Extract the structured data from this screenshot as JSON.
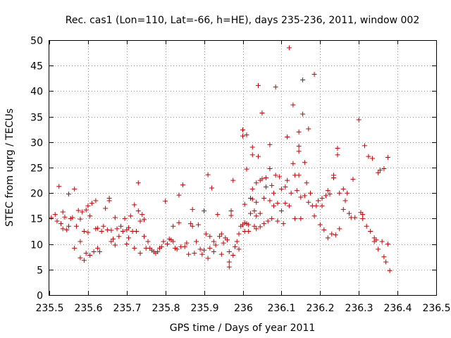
{
  "chart_data": {
    "type": "scatter",
    "title": "Rec. cas1 (Lon=110, Lat=-66, h=HE), days 235-236, 2011, window 002",
    "xlabel": "GPS time / Days of year 2011",
    "ylabel": "STEC from uqrg / TECUs",
    "xlim": [
      235.5,
      236.5
    ],
    "ylim": [
      0,
      50
    ],
    "xticks": [
      "235.5",
      "235.6",
      "235.7",
      "235.8",
      "235.9",
      "236",
      "236.1",
      "236.2",
      "236.3",
      "236.4",
      "236.5"
    ],
    "yticks": [
      "0",
      "5",
      "10",
      "15",
      "20",
      "25",
      "30",
      "35",
      "40",
      "45",
      "50"
    ],
    "grid": true,
    "marker": "plus",
    "color": "#cc0000",
    "points": [
      [
        235.505,
        15.2
      ],
      [
        235.515,
        15.8
      ],
      [
        235.52,
        14.5
      ],
      [
        235.525,
        21.3
      ],
      [
        235.53,
        14.0
      ],
      [
        235.535,
        16.3
      ],
      [
        235.535,
        13.0
      ],
      [
        235.54,
        15.3
      ],
      [
        235.545,
        12.8
      ],
      [
        235.55,
        19.8
      ],
      [
        235.55,
        13.5
      ],
      [
        235.555,
        15.0
      ],
      [
        235.56,
        15.2
      ],
      [
        235.565,
        20.8
      ],
      [
        235.565,
        9.2
      ],
      [
        235.57,
        13.5
      ],
      [
        235.575,
        16.6
      ],
      [
        235.58,
        14.9
      ],
      [
        235.58,
        10.5
      ],
      [
        235.58,
        7.3
      ],
      [
        235.585,
        16.3
      ],
      [
        235.59,
        12.5
      ],
      [
        235.59,
        6.8
      ],
      [
        235.595,
        16.7
      ],
      [
        235.595,
        8.2
      ],
      [
        235.6,
        17.5
      ],
      [
        235.6,
        12.3
      ],
      [
        235.605,
        15.5
      ],
      [
        235.605,
        7.8
      ],
      [
        235.61,
        18.0
      ],
      [
        235.615,
        8.5
      ],
      [
        235.62,
        18.5
      ],
      [
        235.62,
        13.0
      ],
      [
        235.625,
        13.1
      ],
      [
        235.625,
        9.2
      ],
      [
        235.63,
        8.5
      ],
      [
        235.635,
        12.5
      ],
      [
        235.64,
        13.5
      ],
      [
        235.645,
        17.0
      ],
      [
        235.65,
        12.8
      ],
      [
        235.655,
        18.5
      ],
      [
        235.655,
        19.0
      ],
      [
        235.66,
        12.7
      ],
      [
        235.66,
        10.5
      ],
      [
        235.665,
        11.0
      ],
      [
        235.67,
        15.2
      ],
      [
        235.67,
        9.8
      ],
      [
        235.675,
        13.0
      ],
      [
        235.68,
        11.5
      ],
      [
        235.685,
        13.5
      ],
      [
        235.69,
        12.5
      ],
      [
        235.695,
        15.0
      ],
      [
        235.7,
        12.8
      ],
      [
        235.7,
        10.0
      ],
      [
        235.705,
        13.2
      ],
      [
        235.705,
        11.2
      ],
      [
        235.71,
        15.5
      ],
      [
        235.715,
        12.5
      ],
      [
        235.72,
        17.7
      ],
      [
        235.72,
        9.2
      ],
      [
        235.725,
        12.5
      ],
      [
        235.73,
        16.5
      ],
      [
        235.73,
        22.0
      ],
      [
        235.735,
        14.5
      ],
      [
        235.735,
        8.2
      ],
      [
        235.74,
        15.8
      ],
      [
        235.745,
        14.8
      ],
      [
        235.745,
        11.5
      ],
      [
        235.75,
        9.2
      ],
      [
        235.755,
        10.5
      ],
      [
        235.76,
        9.2
      ],
      [
        235.765,
        8.8
      ],
      [
        235.77,
        8.5
      ],
      [
        235.775,
        8.2
      ],
      [
        235.78,
        8.5
      ],
      [
        235.785,
        9.2
      ],
      [
        235.79,
        9.5
      ],
      [
        235.795,
        10.5
      ],
      [
        235.8,
        18.4
      ],
      [
        235.805,
        10.0
      ],
      [
        235.81,
        11.0
      ],
      [
        235.815,
        10.8
      ],
      [
        235.82,
        10.5
      ],
      [
        235.82,
        13.5
      ],
      [
        235.825,
        9.2
      ],
      [
        235.83,
        9.0
      ],
      [
        235.835,
        14.2
      ],
      [
        235.835,
        19.6
      ],
      [
        235.84,
        9.5
      ],
      [
        235.845,
        21.6
      ],
      [
        235.85,
        9.5
      ],
      [
        235.855,
        10.2
      ],
      [
        235.86,
        8.0
      ],
      [
        235.865,
        14.0
      ],
      [
        235.87,
        13.5
      ],
      [
        235.87,
        16.8
      ],
      [
        235.875,
        8.2
      ],
      [
        235.88,
        10.5
      ],
      [
        235.885,
        13.8
      ],
      [
        235.89,
        9.0
      ],
      [
        235.895,
        8.0
      ],
      [
        235.9,
        8.8
      ],
      [
        235.9,
        16.5
      ],
      [
        235.905,
        12.0
      ],
      [
        235.91,
        23.6
      ],
      [
        235.91,
        7.2
      ],
      [
        235.915,
        11.5
      ],
      [
        235.915,
        9.2
      ],
      [
        235.92,
        21.0
      ],
      [
        235.925,
        10.5
      ],
      [
        235.925,
        8.5
      ],
      [
        235.93,
        9.8
      ],
      [
        235.935,
        15.8
      ],
      [
        235.94,
        11.5
      ],
      [
        235.945,
        12.0
      ],
      [
        235.945,
        8.0
      ],
      [
        235.95,
        10.2
      ],
      [
        235.955,
        11.2
      ],
      [
        235.96,
        10.8
      ],
      [
        235.965,
        5.5
      ],
      [
        235.965,
        6.5
      ],
      [
        235.965,
        8.5
      ],
      [
        235.97,
        16.5
      ],
      [
        235.97,
        15.6
      ],
      [
        235.975,
        22.5
      ],
      [
        235.975,
        7.8
      ],
      [
        235.98,
        9.5
      ],
      [
        235.985,
        10.5
      ],
      [
        235.99,
        12.0
      ],
      [
        235.99,
        9.0
      ],
      [
        235.995,
        13.5
      ],
      [
        236.0,
        13.8
      ],
      [
        236.0,
        32.4
      ],
      [
        236.0,
        31.2
      ],
      [
        236.005,
        17.8
      ],
      [
        236.005,
        14.2
      ],
      [
        236.005,
        12.5
      ],
      [
        236.01,
        31.4
      ],
      [
        236.01,
        24.7
      ],
      [
        236.01,
        14.0
      ],
      [
        236.015,
        13.8
      ],
      [
        236.015,
        12.5
      ],
      [
        236.02,
        19.0
      ],
      [
        236.02,
        16.0
      ],
      [
        236.025,
        29.0
      ],
      [
        236.025,
        27.5
      ],
      [
        236.025,
        20.8
      ],
      [
        236.025,
        18.8
      ],
      [
        236.03,
        16.5
      ],
      [
        236.03,
        13.5
      ],
      [
        236.035,
        22.0
      ],
      [
        236.035,
        18.2
      ],
      [
        236.035,
        15.5
      ],
      [
        236.035,
        13.0
      ],
      [
        236.04,
        27.2
      ],
      [
        236.04,
        41.1
      ],
      [
        236.045,
        22.5
      ],
      [
        236.045,
        16.0
      ],
      [
        236.045,
        13.4
      ],
      [
        236.05,
        35.7
      ],
      [
        236.05,
        22.8
      ],
      [
        236.055,
        19.0
      ],
      [
        236.055,
        14.0
      ],
      [
        236.06,
        23.0
      ],
      [
        236.06,
        21.2
      ],
      [
        236.065,
        14.5
      ],
      [
        236.07,
        29.5
      ],
      [
        236.07,
        24.8
      ],
      [
        236.07,
        18.5
      ],
      [
        236.075,
        21.5
      ],
      [
        236.075,
        15.0
      ],
      [
        236.08,
        20.0
      ],
      [
        236.08,
        17.5
      ],
      [
        236.085,
        23.5
      ],
      [
        236.085,
        40.8
      ],
      [
        236.09,
        18.0
      ],
      [
        236.09,
        14.5
      ],
      [
        236.095,
        23.2
      ],
      [
        236.1,
        20.8
      ],
      [
        236.1,
        16.5
      ],
      [
        236.105,
        14.0
      ],
      [
        236.11,
        21.2
      ],
      [
        236.11,
        18.0
      ],
      [
        236.115,
        22.5
      ],
      [
        236.115,
        31.0
      ],
      [
        236.12,
        48.5
      ],
      [
        236.12,
        17.5
      ],
      [
        236.125,
        20.0
      ],
      [
        236.13,
        37.3
      ],
      [
        236.13,
        25.8
      ],
      [
        236.135,
        23.5
      ],
      [
        236.135,
        15.0
      ],
      [
        236.14,
        20.5
      ],
      [
        236.145,
        32.0
      ],
      [
        236.145,
        29.2
      ],
      [
        236.145,
        28.2
      ],
      [
        236.145,
        23.5
      ],
      [
        236.15,
        19.2
      ],
      [
        236.15,
        15.0
      ],
      [
        236.155,
        42.2
      ],
      [
        236.155,
        35.5
      ],
      [
        236.16,
        26.0
      ],
      [
        236.16,
        19.5
      ],
      [
        236.165,
        22.0
      ],
      [
        236.17,
        32.6
      ],
      [
        236.17,
        18.2
      ],
      [
        236.175,
        20.0
      ],
      [
        236.18,
        17.5
      ],
      [
        236.185,
        43.3
      ],
      [
        236.185,
        15.5
      ],
      [
        236.19,
        17.5
      ],
      [
        236.195,
        18.5
      ],
      [
        236.2,
        13.8
      ],
      [
        236.205,
        19.0
      ],
      [
        236.205,
        17.5
      ],
      [
        236.21,
        12.8
      ],
      [
        236.215,
        19.5
      ],
      [
        236.22,
        20.5
      ],
      [
        236.22,
        11.2
      ],
      [
        236.225,
        19.8
      ],
      [
        236.23,
        12.0
      ],
      [
        236.235,
        23.5
      ],
      [
        236.235,
        23.0
      ],
      [
        236.24,
        11.8
      ],
      [
        236.245,
        28.8
      ],
      [
        236.245,
        27.5
      ],
      [
        236.25,
        20.0
      ],
      [
        236.25,
        13.0
      ],
      [
        236.26,
        16.8
      ],
      [
        236.26,
        20.8
      ],
      [
        236.265,
        18.5
      ],
      [
        236.27,
        20.0
      ],
      [
        236.275,
        16.0
      ],
      [
        236.28,
        15.2
      ],
      [
        236.285,
        22.7
      ],
      [
        236.29,
        15.2
      ],
      [
        236.3,
        34.4
      ],
      [
        236.305,
        16.2
      ],
      [
        236.31,
        15.0
      ],
      [
        236.31,
        15.8
      ],
      [
        236.315,
        29.3
      ],
      [
        236.32,
        13.5
      ],
      [
        236.325,
        27.2
      ],
      [
        236.33,
        12.5
      ],
      [
        236.335,
        26.8
      ],
      [
        236.34,
        11.2
      ],
      [
        236.34,
        10.5
      ],
      [
        236.345,
        10.8
      ],
      [
        236.35,
        9.0
      ],
      [
        236.35,
        24.0
      ],
      [
        236.355,
        24.5
      ],
      [
        236.36,
        10.5
      ],
      [
        236.365,
        7.5
      ],
      [
        236.365,
        24.8
      ],
      [
        236.37,
        6.5
      ],
      [
        236.375,
        27.0
      ],
      [
        236.375,
        10.0
      ],
      [
        236.38,
        4.8
      ]
    ]
  }
}
